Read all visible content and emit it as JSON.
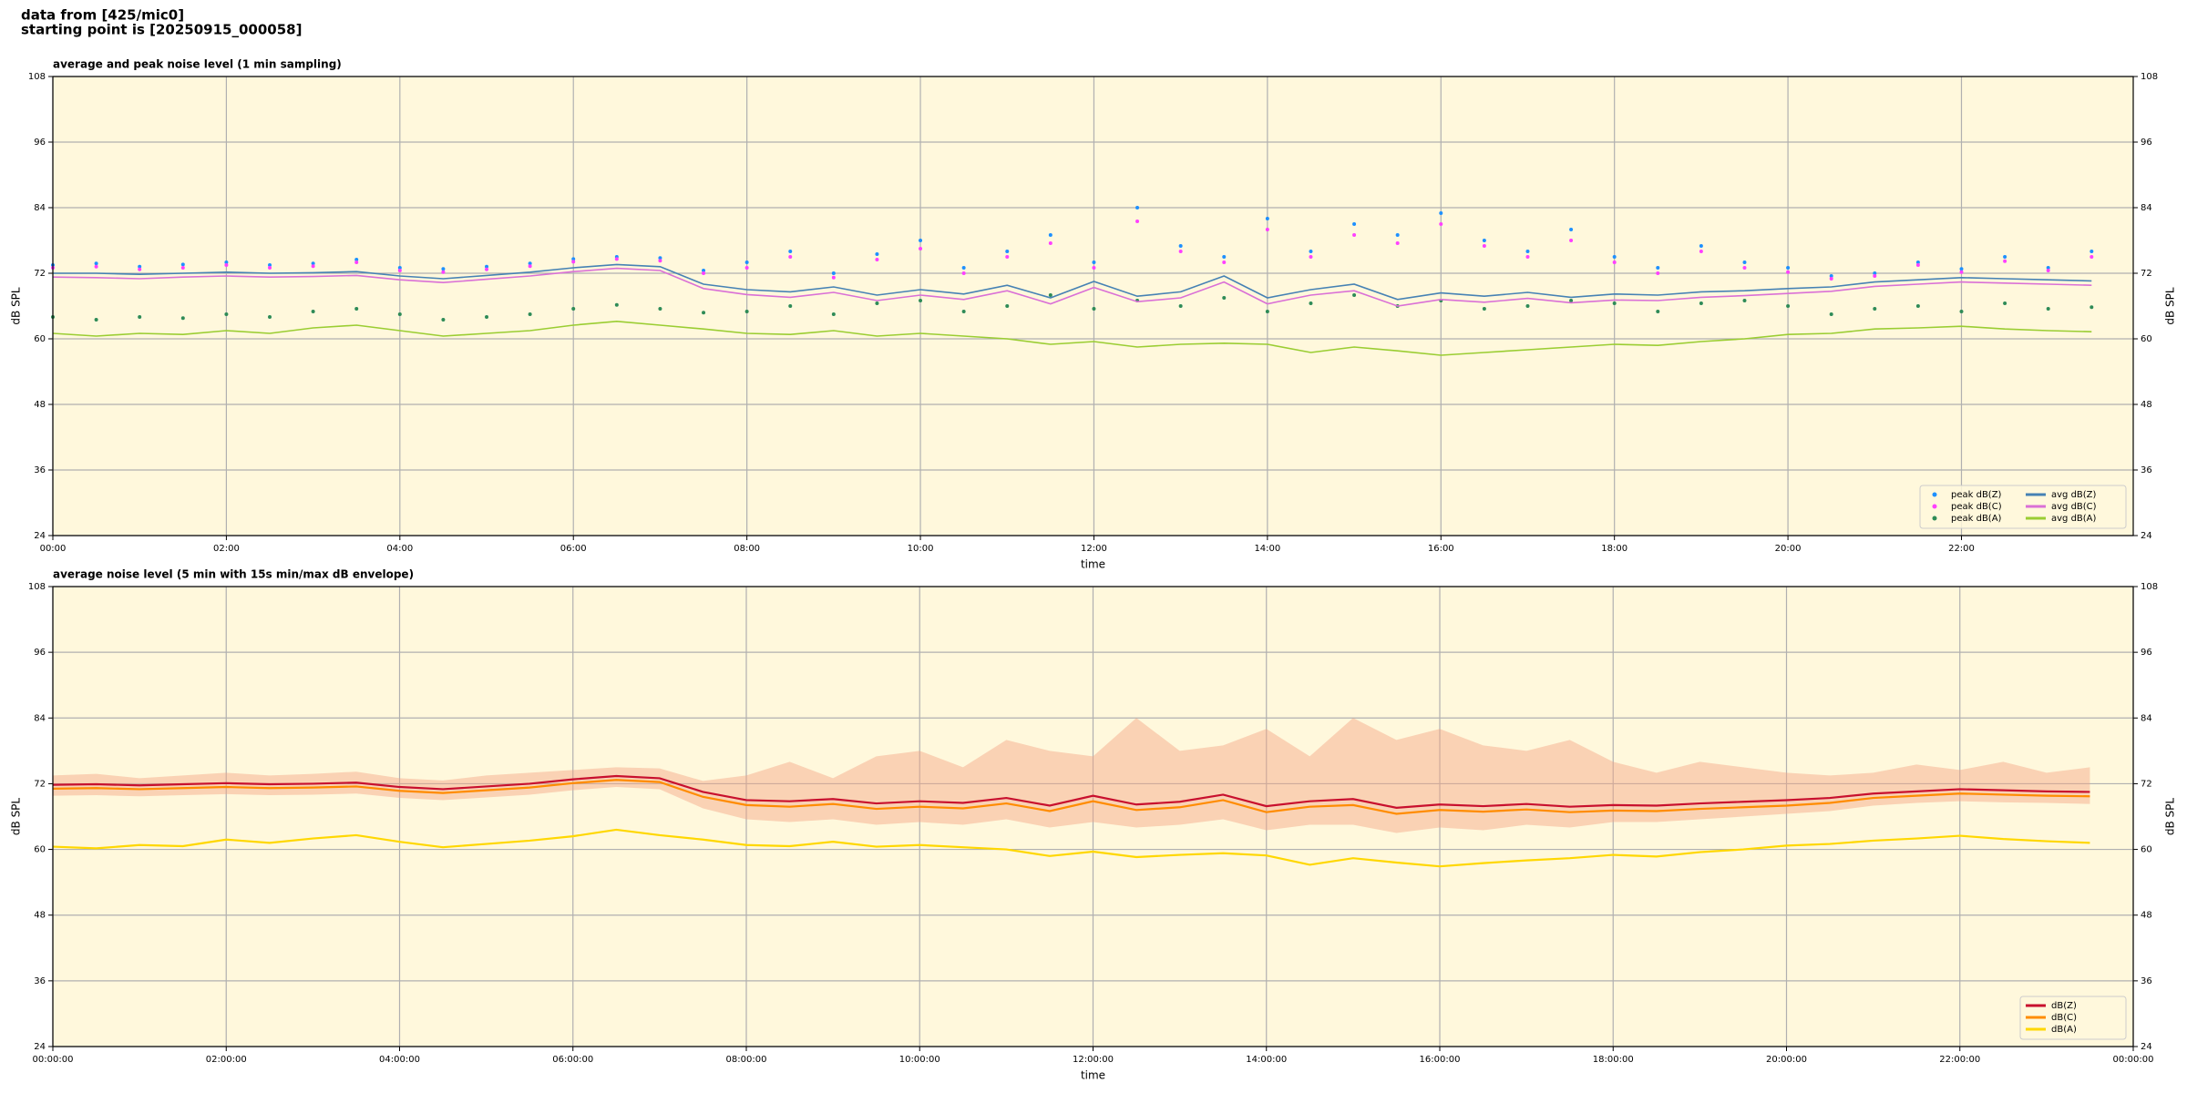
{
  "header": {
    "line1": "data from [425/mic0]",
    "line2": "starting point is [20250915_000058]"
  },
  "chart_data": [
    {
      "type": "line",
      "title": "average and peak noise level (1 min sampling)",
      "xlabel": "time",
      "ylabel": "dB SPL",
      "xlim": [
        0,
        23.98
      ],
      "ylim": [
        24,
        108
      ],
      "xticks": [
        {
          "value": 0,
          "label": "00:00"
        },
        {
          "value": 2,
          "label": "02:00"
        },
        {
          "value": 4,
          "label": "04:00"
        },
        {
          "value": 6,
          "label": "06:00"
        },
        {
          "value": 8,
          "label": "08:00"
        },
        {
          "value": 10,
          "label": "10:00"
        },
        {
          "value": 12,
          "label": "12:00"
        },
        {
          "value": 14,
          "label": "14:00"
        },
        {
          "value": 16,
          "label": "16:00"
        },
        {
          "value": 18,
          "label": "18:00"
        },
        {
          "value": 20,
          "label": "20:00"
        },
        {
          "value": 22,
          "label": "22:00"
        }
      ],
      "yticks": [
        24,
        36,
        48,
        60,
        72,
        84,
        96,
        108
      ],
      "grid": true,
      "legend": "lower right",
      "legend_columns": 2,
      "x": [
        0,
        0.5,
        1,
        1.5,
        2,
        2.5,
        3,
        3.5,
        4,
        4.5,
        5,
        5.5,
        6,
        6.5,
        7,
        7.5,
        8,
        8.5,
        9,
        9.5,
        10,
        10.5,
        11,
        11.5,
        12,
        12.5,
        13,
        13.5,
        14,
        14.5,
        15,
        15.5,
        16,
        16.5,
        17,
        17.5,
        18,
        18.5,
        19,
        19.5,
        20,
        20.5,
        21,
        21.5,
        22,
        22.5,
        23,
        23.5
      ],
      "series": [
        {
          "name": "peak dB(Z)",
          "color": "#1e90ff",
          "kind": "scatter",
          "values": [
            73.5,
            73.8,
            73.2,
            73.6,
            74,
            73.5,
            73.8,
            74.5,
            73,
            72.8,
            73.2,
            73.8,
            74.6,
            75,
            74.8,
            72.5,
            74,
            76,
            72,
            75.5,
            78,
            73,
            76,
            79,
            74,
            84,
            77,
            75,
            82,
            76,
            81,
            79,
            83,
            78,
            76,
            80,
            75,
            73,
            77,
            74,
            73,
            71.5,
            72,
            74,
            72.8,
            75,
            73,
            76
          ]
        },
        {
          "name": "peak dB(C)",
          "color": "#ff40ff",
          "kind": "scatter",
          "values": [
            73,
            73.2,
            72.7,
            73,
            73.5,
            73,
            73.3,
            74,
            72.5,
            72.2,
            72.7,
            73.3,
            74.1,
            74.6,
            74.3,
            72,
            73,
            75,
            71.2,
            74.5,
            76.5,
            72,
            75,
            77.5,
            73,
            81.5,
            76,
            74,
            80,
            75,
            79,
            77.5,
            81,
            77,
            75,
            78,
            74,
            72,
            76,
            73,
            72.2,
            71,
            71.5,
            73.5,
            72.2,
            74.2,
            72.5,
            75
          ]
        },
        {
          "name": "peak dB(A)",
          "color": "#2e8b57",
          "kind": "scatter",
          "values": [
            64,
            63.5,
            64,
            63.8,
            64.5,
            64,
            65,
            65.5,
            64.5,
            63.5,
            64,
            64.5,
            65.5,
            66.2,
            65.5,
            64.8,
            65,
            66,
            64.5,
            66.5,
            67,
            65,
            66,
            68,
            65.5,
            67,
            66,
            67.5,
            65,
            66.5,
            68,
            66,
            67,
            65.5,
            66,
            67,
            66.5,
            65,
            66.5,
            67,
            66,
            64.5,
            65.5,
            66,
            65,
            66.5,
            65.5,
            65.8
          ]
        },
        {
          "name": "avg dB(Z)",
          "color": "#4682b4",
          "kind": "line",
          "values": [
            72,
            72,
            71.8,
            72,
            72.2,
            72,
            72.1,
            72.3,
            71.5,
            71,
            71.6,
            72.2,
            73,
            73.6,
            73.2,
            70,
            69,
            68.6,
            69.5,
            68,
            69,
            68.2,
            69.8,
            67.5,
            70.5,
            67.8,
            68.6,
            71.5,
            67.5,
            69,
            70,
            67.2,
            68.4,
            67.8,
            68.5,
            67.6,
            68.2,
            68,
            68.6,
            68.8,
            69.2,
            69.5,
            70.4,
            70.8,
            71.2,
            71,
            70.8,
            70.6
          ]
        },
        {
          "name": "avg dB(C)",
          "color": "#da70d6",
          "kind": "line",
          "values": [
            71.3,
            71.2,
            71,
            71.3,
            71.5,
            71.3,
            71.4,
            71.6,
            70.8,
            70.3,
            70.9,
            71.5,
            72.3,
            72.9,
            72.5,
            69.2,
            68.1,
            67.6,
            68.5,
            67,
            68,
            67.2,
            68.8,
            66.4,
            69.4,
            66.8,
            67.5,
            70.4,
            66.4,
            68,
            68.8,
            66,
            67.2,
            66.7,
            67.4,
            66.6,
            67.1,
            67,
            67.6,
            67.9,
            68.3,
            68.7,
            69.6,
            70,
            70.4,
            70.2,
            70,
            69.8
          ]
        },
        {
          "name": "avg dB(A)",
          "color": "#9acd32",
          "kind": "line",
          "values": [
            61,
            60.5,
            61,
            60.8,
            61.5,
            61,
            62,
            62.5,
            61.5,
            60.5,
            61,
            61.5,
            62.5,
            63.2,
            62.5,
            61.8,
            61,
            60.8,
            61.5,
            60.5,
            61,
            60.5,
            60,
            59,
            59.5,
            58.5,
            59,
            59.2,
            59,
            57.5,
            58.5,
            57.8,
            57,
            57.5,
            58,
            58.5,
            59,
            58.8,
            59.5,
            60,
            60.8,
            61,
            61.8,
            62,
            62.3,
            61.8,
            61.5,
            61.3
          ]
        }
      ]
    },
    {
      "type": "line",
      "title": "average noise level (5 min with 15s min/max dB envelope)",
      "xlabel": "time",
      "ylabel": "dB SPL",
      "xlim": [
        0,
        24
      ],
      "ylim": [
        24,
        108
      ],
      "xticks": [
        {
          "value": 0,
          "label": "00:00:00"
        },
        {
          "value": 2,
          "label": "02:00:00"
        },
        {
          "value": 4,
          "label": "04:00:00"
        },
        {
          "value": 6,
          "label": "06:00:00"
        },
        {
          "value": 8,
          "label": "08:00:00"
        },
        {
          "value": 10,
          "label": "10:00:00"
        },
        {
          "value": 12,
          "label": "12:00:00"
        },
        {
          "value": 14,
          "label": "14:00:00"
        },
        {
          "value": 16,
          "label": "16:00:00"
        },
        {
          "value": 18,
          "label": "18:00:00"
        },
        {
          "value": 20,
          "label": "20:00:00"
        },
        {
          "value": 22,
          "label": "22:00:00"
        },
        {
          "value": 24,
          "label": "00:00:00"
        }
      ],
      "yticks": [
        24,
        36,
        48,
        60,
        72,
        84,
        96,
        108
      ],
      "grid": true,
      "legend": "lower right",
      "legend_columns": 1,
      "x": [
        0,
        0.5,
        1,
        1.5,
        2,
        2.5,
        3,
        3.5,
        4,
        4.5,
        5,
        5.5,
        6,
        6.5,
        7,
        7.5,
        8,
        8.5,
        9,
        9.5,
        10,
        10.5,
        11,
        11.5,
        12,
        12.5,
        13,
        13.5,
        14,
        14.5,
        15,
        15.5,
        16,
        16.5,
        17,
        17.5,
        18,
        18.5,
        19,
        19.5,
        20,
        20.5,
        21,
        21.5,
        22,
        22.5,
        23,
        23.5
      ],
      "series": [
        {
          "name": "dB(Z)",
          "color": "#c8102e",
          "kind": "line",
          "values": [
            71.8,
            71.9,
            71.7,
            71.9,
            72.1,
            71.9,
            72,
            72.2,
            71.4,
            71,
            71.5,
            72,
            72.8,
            73.4,
            73,
            70.5,
            69,
            68.8,
            69.2,
            68.4,
            68.8,
            68.5,
            69.4,
            68,
            69.8,
            68.2,
            68.7,
            70,
            67.9,
            68.8,
            69.2,
            67.6,
            68.2,
            67.9,
            68.3,
            67.8,
            68.1,
            68,
            68.4,
            68.7,
            69,
            69.4,
            70.2,
            70.6,
            71,
            70.8,
            70.6,
            70.5
          ]
        },
        {
          "name": "dB(C)",
          "color": "#ff8c00",
          "kind": "line",
          "values": [
            71.1,
            71.2,
            71,
            71.2,
            71.4,
            71.2,
            71.3,
            71.5,
            70.7,
            70.3,
            70.8,
            71.3,
            72.1,
            72.7,
            72.3,
            69.6,
            68.1,
            67.8,
            68.3,
            67.4,
            67.8,
            67.5,
            68.4,
            67,
            68.8,
            67.2,
            67.7,
            69,
            66.8,
            67.8,
            68.1,
            66.5,
            67.2,
            66.9,
            67.3,
            66.8,
            67.1,
            67,
            67.4,
            67.7,
            68,
            68.5,
            69.4,
            69.8,
            70.2,
            70,
            69.8,
            69.7
          ],
          "envelope": {
            "color": "#f4a582",
            "lower": [
              69.8,
              69.9,
              69.7,
              69.9,
              70.1,
              69.9,
              70,
              70.2,
              69.4,
              69,
              69.5,
              70,
              70.8,
              71.4,
              71,
              67.5,
              65.5,
              65,
              65.5,
              64.5,
              65,
              64.5,
              65.5,
              64,
              65,
              64,
              64.5,
              65.5,
              63.5,
              64.5,
              64.5,
              63,
              64,
              63.5,
              64.5,
              64,
              65,
              65,
              65.5,
              66,
              66.5,
              67,
              68,
              68.5,
              68.8,
              68.6,
              68.5,
              68.3
            ],
            "upper": [
              73.5,
              73.8,
              73,
              73.5,
              74,
              73.5,
              73.8,
              74.2,
              73,
              72.6,
              73.5,
              74,
              74.5,
              75,
              74.8,
              72.5,
              73.5,
              76,
              73,
              77,
              78,
              75,
              80,
              78,
              77,
              84,
              78,
              79,
              82,
              77,
              84,
              80,
              82,
              79,
              78,
              80,
              76,
              74,
              76,
              75,
              74,
              73.5,
              74,
              75.5,
              74.5,
              76,
              74,
              75
            ]
          }
        },
        {
          "name": "dB(A)",
          "color": "#ffd700",
          "kind": "line",
          "values": [
            60.5,
            60.2,
            60.8,
            60.6,
            61.8,
            61.2,
            62,
            62.6,
            61.4,
            60.4,
            61,
            61.6,
            62.4,
            63.6,
            62.6,
            61.8,
            60.8,
            60.6,
            61.4,
            60.5,
            60.8,
            60.4,
            60,
            58.8,
            59.6,
            58.6,
            59,
            59.3,
            58.9,
            57.2,
            58.4,
            57.6,
            56.9,
            57.5,
            58,
            58.4,
            59,
            58.7,
            59.5,
            60,
            60.7,
            61,
            61.6,
            62,
            62.5,
            61.9,
            61.5,
            61.2
          ]
        }
      ]
    }
  ]
}
